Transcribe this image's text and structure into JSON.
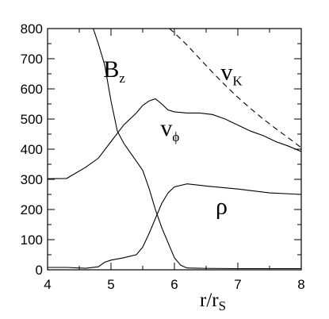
{
  "chart_data": {
    "type": "line",
    "xlabel": "r/r",
    "xlabel_sub": "S",
    "xlim": [
      4,
      8
    ],
    "ylim": [
      0,
      800
    ],
    "xticks": [
      4,
      5,
      6,
      7,
      8
    ],
    "yticks": [
      0,
      100,
      200,
      300,
      400,
      500,
      600,
      700,
      800
    ],
    "grid": false,
    "series": [
      {
        "name": "B",
        "name_sub": "z",
        "style": "solid",
        "points": [
          [
            4.72,
            800
          ],
          [
            4.8,
            750
          ],
          [
            4.9,
            680
          ],
          [
            5.0,
            560
          ],
          [
            5.1,
            460
          ],
          [
            5.2,
            420
          ],
          [
            5.3,
            390
          ],
          [
            5.4,
            360
          ],
          [
            5.5,
            330
          ],
          [
            5.6,
            270
          ],
          [
            5.7,
            200
          ],
          [
            5.8,
            140
          ],
          [
            5.9,
            90
          ],
          [
            6.0,
            40
          ],
          [
            6.1,
            15
          ],
          [
            6.2,
            6
          ],
          [
            6.4,
            5
          ],
          [
            7.0,
            4
          ],
          [
            8.0,
            4
          ]
        ]
      },
      {
        "name": "v",
        "name_sub": "ϕ",
        "style": "solid",
        "points": [
          [
            4.0,
            302
          ],
          [
            4.3,
            303
          ],
          [
            4.6,
            340
          ],
          [
            4.8,
            370
          ],
          [
            5.0,
            425
          ],
          [
            5.2,
            480
          ],
          [
            5.4,
            520
          ],
          [
            5.5,
            545
          ],
          [
            5.6,
            560
          ],
          [
            5.7,
            567
          ],
          [
            5.8,
            550
          ],
          [
            5.9,
            530
          ],
          [
            6.0,
            524
          ],
          [
            6.2,
            520
          ],
          [
            6.4,
            520
          ],
          [
            6.6,
            515
          ],
          [
            6.8,
            500
          ],
          [
            7.0,
            480
          ],
          [
            7.2,
            460
          ],
          [
            7.4,
            445
          ],
          [
            7.6,
            425
          ],
          [
            7.8,
            410
          ],
          [
            8.0,
            392
          ]
        ]
      },
      {
        "name": "ρ",
        "name_sub": "",
        "style": "solid",
        "points": [
          [
            4.0,
            8
          ],
          [
            4.3,
            8
          ],
          [
            4.6,
            5
          ],
          [
            4.8,
            10
          ],
          [
            4.9,
            25
          ],
          [
            5.0,
            32
          ],
          [
            5.2,
            40
          ],
          [
            5.4,
            50
          ],
          [
            5.5,
            75
          ],
          [
            5.6,
            120
          ],
          [
            5.7,
            170
          ],
          [
            5.8,
            220
          ],
          [
            5.9,
            255
          ],
          [
            6.0,
            275
          ],
          [
            6.2,
            285
          ],
          [
            6.5,
            278
          ],
          [
            7.0,
            268
          ],
          [
            7.5,
            255
          ],
          [
            8.0,
            250
          ]
        ]
      },
      {
        "name": "v",
        "name_sub": "K",
        "style": "dashed",
        "points": [
          [
            5.92,
            800
          ],
          [
            6.0,
            786
          ],
          [
            6.2,
            745
          ],
          [
            6.4,
            700
          ],
          [
            6.6,
            655
          ],
          [
            6.8,
            612
          ],
          [
            7.0,
            572
          ],
          [
            7.2,
            535
          ],
          [
            7.4,
            500
          ],
          [
            7.6,
            468
          ],
          [
            7.8,
            437
          ],
          [
            8.0,
            405
          ]
        ]
      }
    ],
    "annotations": [
      {
        "series": 0,
        "x": 4.88,
        "y": 640
      },
      {
        "series": 1,
        "x": 5.78,
        "y": 445
      },
      {
        "series": 2,
        "x": 6.65,
        "y": 185
      },
      {
        "series": 3,
        "x": 6.73,
        "y": 630
      }
    ]
  }
}
